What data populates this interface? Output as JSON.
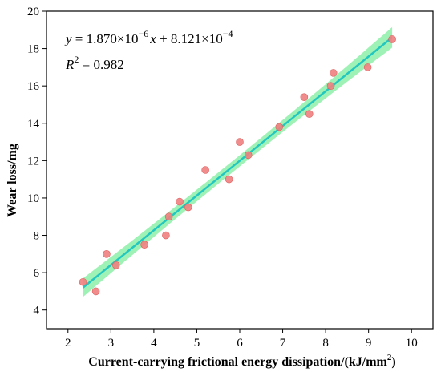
{
  "chart_data": {
    "type": "scatter",
    "xlabel": "Current-carrying frictional energy dissipation/(kJ/mm",
    "xlabel_sup": "2",
    "xlabel_end": ")",
    "ylabel": "Wear loss/mg",
    "xlim": [
      1.5,
      10.5
    ],
    "ylim": [
      3,
      20
    ],
    "xticks": [
      2,
      3,
      4,
      5,
      6,
      7,
      8,
      9,
      10
    ],
    "yticks": [
      4,
      6,
      8,
      10,
      12,
      14,
      16,
      18,
      20
    ],
    "grid": false,
    "points": [
      {
        "x": 2.35,
        "y": 5.5
      },
      {
        "x": 2.65,
        "y": 5.0
      },
      {
        "x": 2.9,
        "y": 7.0
      },
      {
        "x": 3.12,
        "y": 6.4
      },
      {
        "x": 3.78,
        "y": 7.5
      },
      {
        "x": 4.28,
        "y": 8.0
      },
      {
        "x": 4.35,
        "y": 9.0
      },
      {
        "x": 4.6,
        "y": 9.8
      },
      {
        "x": 4.8,
        "y": 9.5
      },
      {
        "x": 5.2,
        "y": 11.5
      },
      {
        "x": 5.75,
        "y": 11.0
      },
      {
        "x": 6.0,
        "y": 13.0
      },
      {
        "x": 6.2,
        "y": 12.3
      },
      {
        "x": 6.92,
        "y": 13.8
      },
      {
        "x": 7.5,
        "y": 15.4
      },
      {
        "x": 7.62,
        "y": 14.5
      },
      {
        "x": 8.12,
        "y": 16.0
      },
      {
        "x": 8.18,
        "y": 16.7
      },
      {
        "x": 8.98,
        "y": 17.0
      },
      {
        "x": 9.55,
        "y": 18.5
      }
    ],
    "fit": {
      "x_start": 2.35,
      "x_end": 9.55,
      "y_start": 5.2,
      "y_end": 18.6
    },
    "band": {
      "start_halfwidth": 0.5,
      "mid_halfwidth": 0.3,
      "end_halfwidth": 0.55
    },
    "equation": {
      "line1": {
        "y": "y",
        "eq": " = 1.870×10",
        "exp": "−6",
        "x": "x",
        "rest": " + 8.121×10",
        "exp2": "−4"
      },
      "line2": {
        "r": "R",
        "rexp": "2",
        "val": " = 0.982"
      }
    },
    "colors": {
      "fit_line": "#22c7c0",
      "band": "#8ef0a8",
      "marker_fill": "#f08080",
      "marker_edge": "#e06060"
    }
  }
}
